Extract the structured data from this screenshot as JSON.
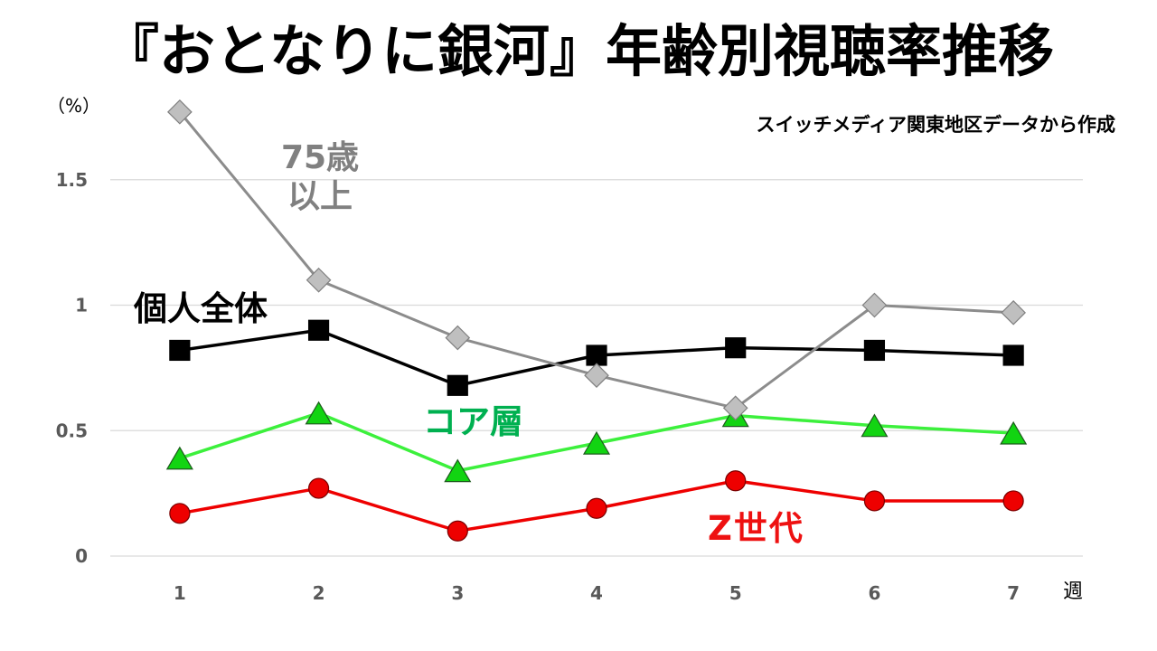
{
  "chart_data": {
    "type": "line",
    "title": "『おとなりに銀河』年齢別視聴率推移",
    "source_note": "スイッチメディア関東地区データから作成",
    "xlabel": "週",
    "ylabel": "（%）",
    "categories": [
      "1",
      "2",
      "3",
      "4",
      "5",
      "6",
      "7"
    ],
    "ylim": [
      0,
      1.8
    ],
    "yticks": [
      0,
      0.5,
      1,
      1.5
    ],
    "grid": true,
    "series": [
      {
        "name": "個人全体",
        "values": [
          0.82,
          0.9,
          0.68,
          0.8,
          0.83,
          0.82,
          0.8
        ],
        "color": "#000000",
        "marker": "square",
        "marker_fill": "#000000",
        "marker_stroke": "#000000",
        "label_color": "#000000"
      },
      {
        "name": "コア層",
        "values": [
          0.39,
          0.57,
          0.34,
          0.45,
          0.56,
          0.52,
          0.49
        ],
        "color": "#3cf03c",
        "marker": "triangle",
        "marker_fill": "#12d412",
        "marker_stroke": "#1d5a1d",
        "label_color": "#00b050"
      },
      {
        "name": "Z世代",
        "values": [
          0.17,
          0.27,
          0.1,
          0.19,
          0.3,
          0.22,
          0.22
        ],
        "color": "#ee0000",
        "marker": "circle",
        "marker_fill": "#ee0000",
        "marker_stroke": "#7a0000",
        "label_color": "#ee1111"
      },
      {
        "name": "75歳以上",
        "values": [
          1.77,
          1.1,
          0.87,
          0.72,
          0.59,
          1.0,
          0.97
        ],
        "color": "#8c8c8c",
        "marker": "diamond",
        "marker_fill": "#bfbfbf",
        "marker_stroke": "#7f7f7f",
        "label_color": "#808080"
      }
    ]
  }
}
